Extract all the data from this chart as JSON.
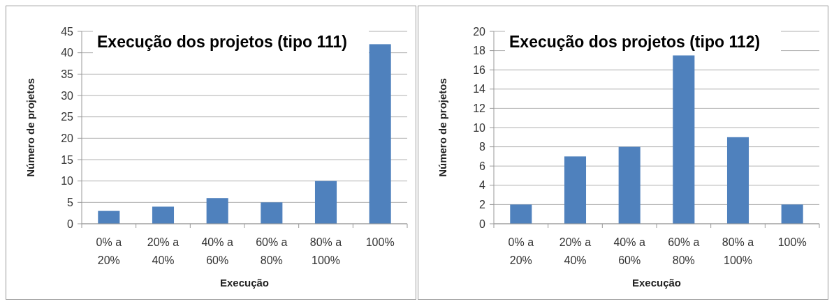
{
  "chart_data": [
    {
      "type": "bar",
      "title": "Execução dos projetos (tipo 111)",
      "xlabel": "Execução",
      "ylabel": "Número de projetos",
      "categories": [
        "0% a 20%",
        "20% a 40%",
        "40% a 60%",
        "60% a 80%",
        "80% a 100%",
        "100%"
      ],
      "values": [
        3,
        4,
        6,
        5,
        10,
        42
      ],
      "color": "#4f81bd",
      "ylim": [
        0,
        45
      ],
      "yticks": [
        0,
        5,
        10,
        15,
        20,
        25,
        30,
        35,
        40,
        45
      ],
      "grid": "y"
    },
    {
      "type": "bar",
      "title": "Execução dos projetos (tipo 112)",
      "xlabel": "Execução",
      "ylabel": "Número de projetos",
      "categories": [
        "0% a 20%",
        "20% a 40%",
        "40% a 60%",
        "60% a 80%",
        "80% a 100%",
        "100%"
      ],
      "values": [
        2,
        7,
        8,
        17.5,
        9,
        2
      ],
      "color": "#4f81bd",
      "ylim": [
        0,
        20
      ],
      "yticks": [
        0,
        2,
        4,
        6,
        8,
        10,
        12,
        14,
        16,
        18,
        20
      ],
      "grid": "y"
    }
  ]
}
